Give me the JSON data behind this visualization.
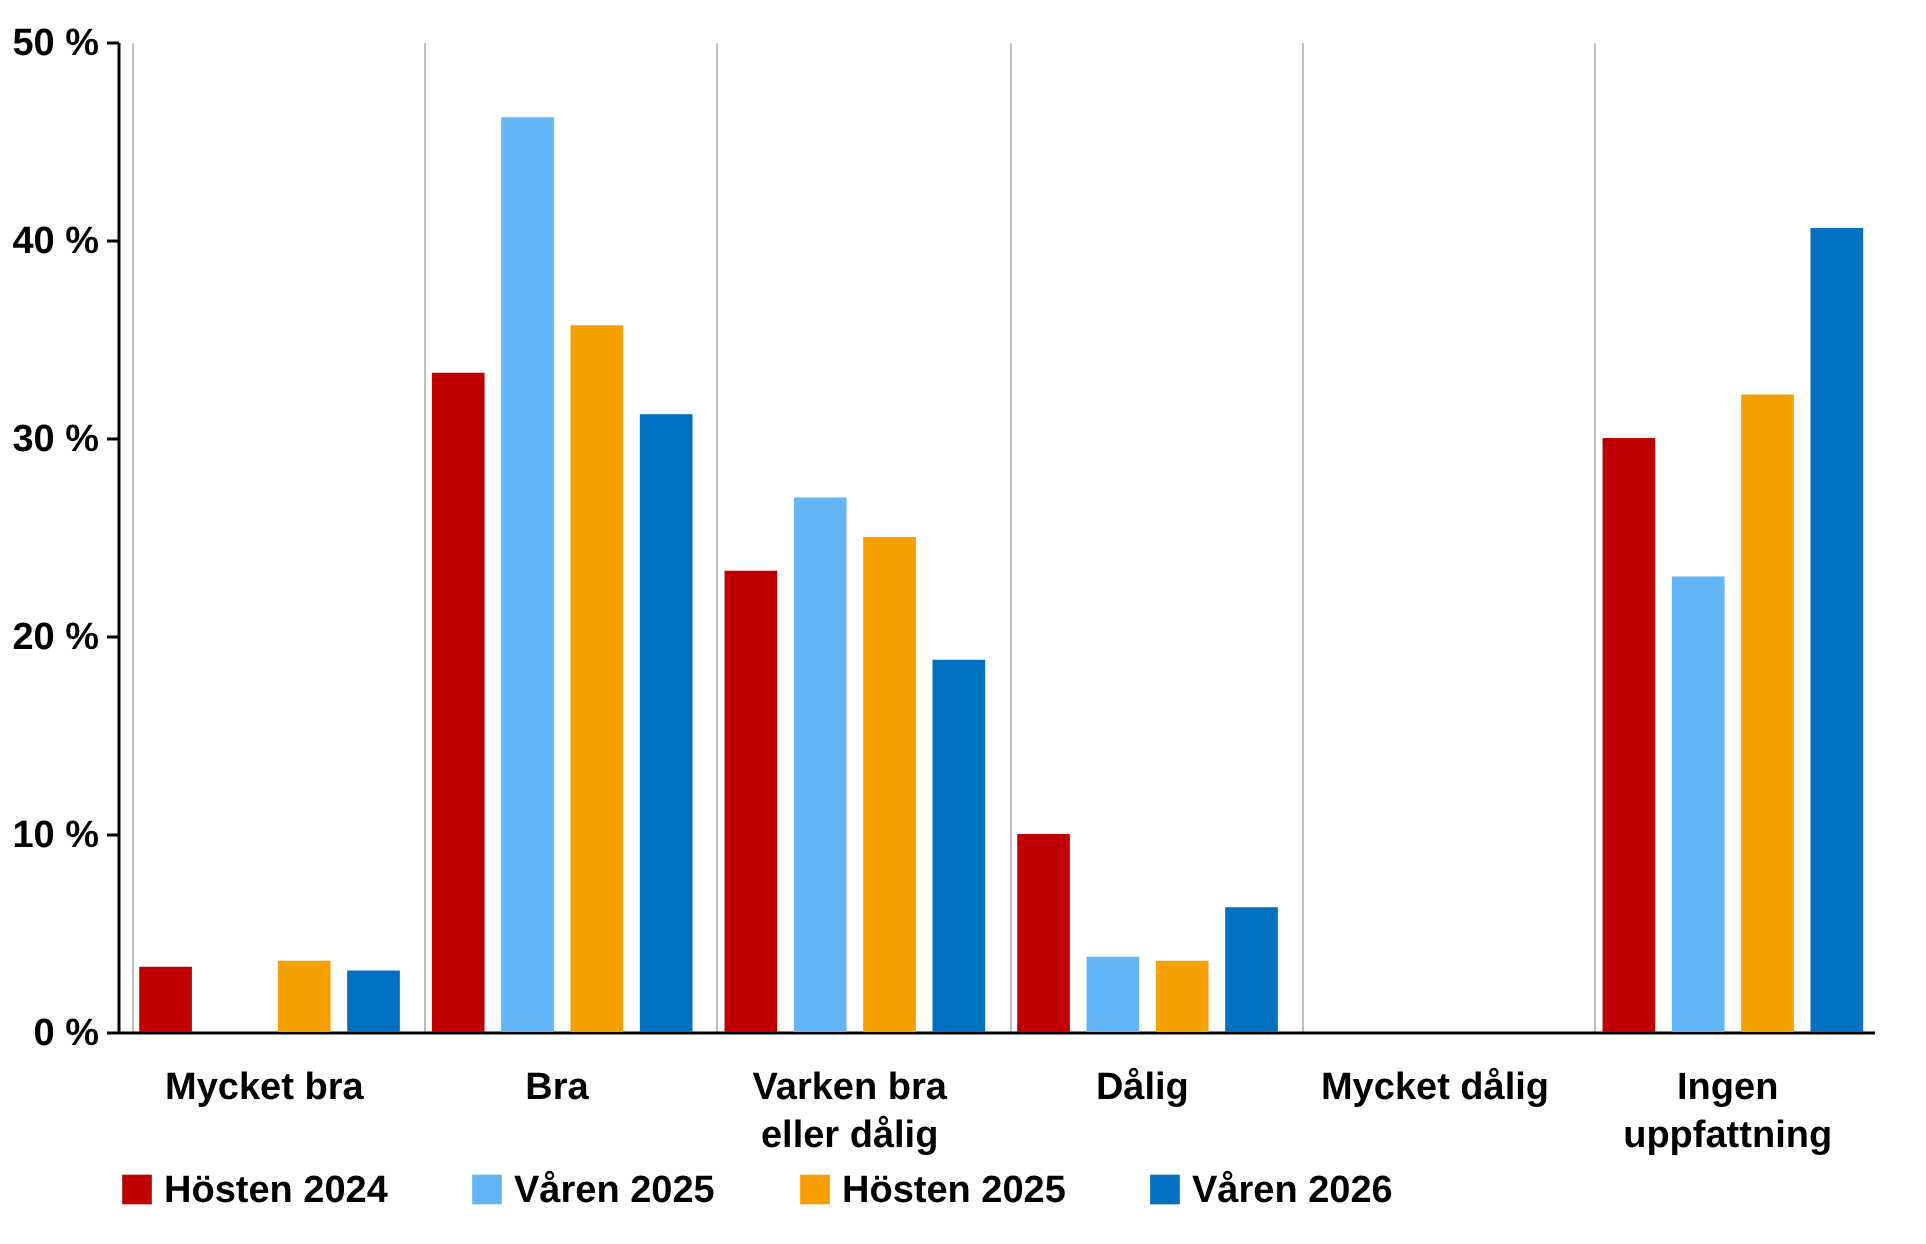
{
  "chart_data": {
    "type": "bar",
    "categories": [
      "Mycket bra",
      "Bra",
      "Varken bra eller dålig",
      "Dålig",
      "Mycket dålig",
      "Ingen uppfattning"
    ],
    "series": [
      {
        "name": "Hösten 2024",
        "color": "#c00000",
        "values": [
          3.3,
          33.3,
          23.3,
          10.0,
          0,
          30.0
        ]
      },
      {
        "name": "Våren 2025",
        "color": "#63b5f5",
        "values": [
          0,
          46.2,
          27.0,
          3.8,
          0,
          23.0
        ]
      },
      {
        "name": "Hösten 2025",
        "color": "#f59f00",
        "values": [
          3.6,
          35.7,
          25.0,
          3.6,
          0,
          32.2
        ]
      },
      {
        "name": "Våren 2026",
        "color": "#0070c0",
        "values": [
          3.1,
          31.2,
          18.8,
          6.3,
          0,
          40.6
        ]
      }
    ],
    "ylim": [
      0,
      50
    ],
    "yticks": [
      {
        "value": 0,
        "label": "0 %"
      },
      {
        "value": 10,
        "label": "10 %"
      },
      {
        "value": 20,
        "label": "20 %"
      },
      {
        "value": 30,
        "label": "30 %"
      },
      {
        "value": 40,
        "label": "40 %"
      },
      {
        "value": 50,
        "label": "50 %"
      }
    ],
    "grid": "x",
    "legend": "bottom"
  }
}
